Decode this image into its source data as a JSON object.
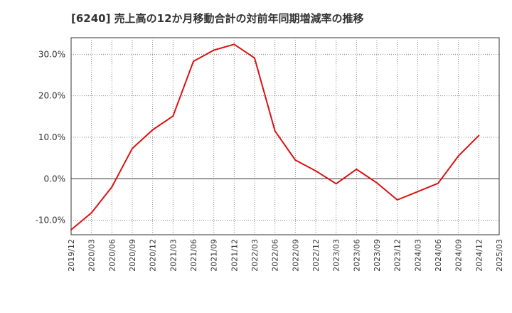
{
  "chart_data": {
    "type": "line",
    "title": "[6240]  売上高の12か月移動合計の対前年同期増減率の推移",
    "xlabel": "",
    "ylabel": "",
    "ylim": [
      -13.5,
      34
    ],
    "yticks": [
      -10,
      0,
      10,
      20,
      30
    ],
    "ytick_labels": [
      "-10.0%",
      "0.0%",
      "10.0%",
      "20.0%",
      "30.0%"
    ],
    "categories": [
      "2019/12",
      "2020/03",
      "2020/06",
      "2020/09",
      "2020/12",
      "2021/03",
      "2021/06",
      "2021/09",
      "2021/12",
      "2022/03",
      "2022/06",
      "2022/09",
      "2022/12",
      "2023/03",
      "2023/06",
      "2023/09",
      "2023/12",
      "2024/03",
      "2024/06",
      "2024/09",
      "2024/12",
      "2025/03"
    ],
    "series": [
      {
        "color": "#dd1111",
        "values": [
          -12.3,
          -8.2,
          -2.0,
          7.3,
          11.8,
          15.1,
          28.3,
          31.0,
          32.4,
          29.1,
          11.5,
          4.5,
          1.9,
          -1.2,
          2.3,
          -1.0,
          -5.1,
          -3.1,
          -1.1,
          5.5,
          10.4,
          null
        ]
      }
    ],
    "grid": true,
    "legend": "none"
  }
}
